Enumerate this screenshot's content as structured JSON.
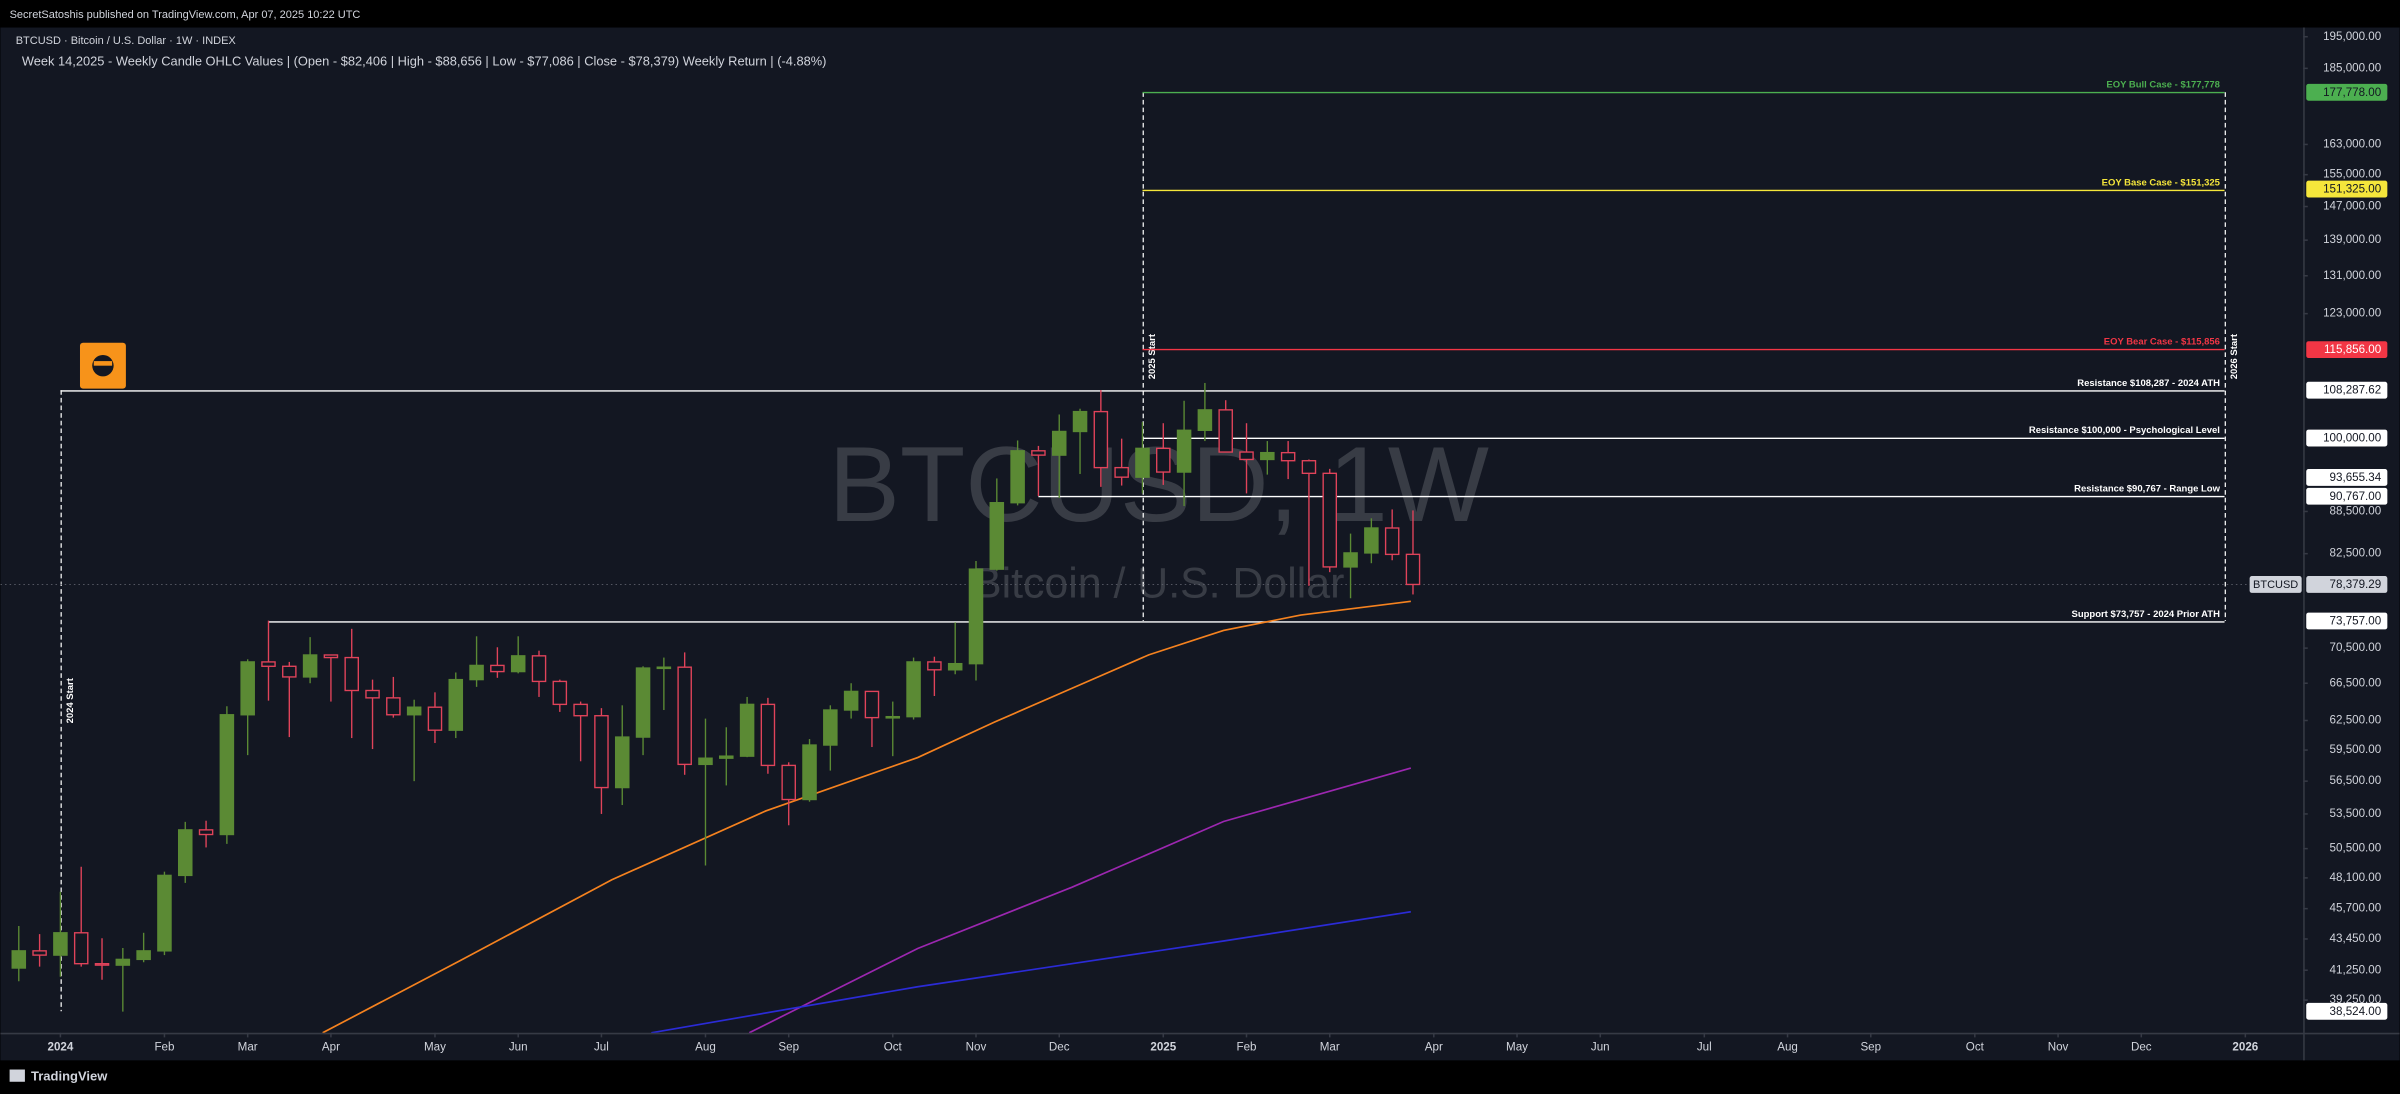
{
  "header": {
    "publisher": "SecretSatoshis published on TradingView.com, Apr 07, 2025 10:22 UTC",
    "symbol": "BTCUSD · Bitcoin / U.S. Dollar · 1W · INDEX",
    "footer": "TradingView"
  },
  "chart_data": {
    "type": "candlestick",
    "title": "Week 14,2025 - Weekly Candle OHLC Values | (Open - $82,406 | High - $88,656 | Low - $77,086 | Close - $78,379) Weekly Return | (-4.88%)",
    "watermark": "BTCUSD, 1W",
    "watermark_subtitle": "Bitcoin / U.S. Dollar",
    "categories": [
      null,
      null,
      null,
      null,
      null,
      null,
      null,
      null,
      null,
      null,
      null,
      null,
      null,
      null,
      null,
      null,
      null,
      null,
      null,
      null,
      null,
      null,
      null,
      null,
      null,
      null,
      null,
      null,
      null,
      null,
      null,
      null,
      null,
      null,
      null,
      null,
      null,
      null,
      null,
      null,
      null,
      null,
      null,
      null,
      null,
      null,
      null,
      null,
      null,
      null,
      null,
      null,
      null,
      null,
      null,
      null,
      null,
      null,
      null,
      null,
      null,
      null,
      null,
      null,
      null,
      null,
      null,
      null
    ],
    "open": [
      41400,
      42600,
      42300,
      43900,
      41700,
      41600,
      42000,
      42600,
      48300,
      52100,
      51700,
      63100,
      68900,
      68400,
      67200,
      69700,
      69400,
      65700,
      64900,
      63100,
      63900,
      61500,
      66900,
      68500,
      67800,
      69600,
      66700,
      64200,
      63000,
      55900,
      60800,
      68200,
      68300,
      58100,
      58700,
      58900,
      64200,
      58000,
      54800,
      60000,
      63600,
      65600,
      62800,
      62900,
      68900,
      68000,
      68700,
      80400,
      89800,
      97900,
      97200,
      101100,
      104500,
      95200,
      93700,
      98300,
      94500,
      101300,
      104800,
      97700,
      96500,
      97600,
      96300,
      94300,
      80700,
      82600,
      86100,
      82406
    ],
    "high": [
      44400,
      43800,
      47000,
      49000,
      43500,
      42800,
      43900,
      48600,
      52800,
      52900,
      64000,
      69200,
      73800,
      68900,
      71800,
      69700,
      72800,
      66900,
      67200,
      64700,
      65500,
      67700,
      71900,
      70600,
      71900,
      70200,
      66900,
      64500,
      63800,
      64100,
      68400,
      69400,
      70000,
      62700,
      61800,
      65000,
      64900,
      58300,
      60600,
      64100,
      66500,
      65600,
      64500,
      69400,
      69500,
      73600,
      81500,
      93500,
      99600,
      98700,
      104000,
      105000,
      108300,
      99900,
      102700,
      102500,
      106400,
      109600,
      106500,
      102500,
      99500,
      99500,
      96500,
      95000,
      85300,
      87500,
      88800,
      88656
    ],
    "low": [
      40500,
      41500,
      40800,
      41500,
      40600,
      38500,
      41800,
      42300,
      47700,
      50600,
      50900,
      59000,
      64600,
      60800,
      66500,
      64500,
      60700,
      59600,
      62800,
      56500,
      60200,
      60700,
      66100,
      67100,
      67600,
      65000,
      63400,
      58400,
      53500,
      54300,
      59000,
      63600,
      57100,
      49100,
      56100,
      58800,
      57200,
      52500,
      54600,
      57500,
      62700,
      59800,
      58900,
      62600,
      65100,
      67500,
      66800,
      80200,
      89400,
      90800,
      90500,
      94200,
      92200,
      92400,
      91200,
      92500,
      89300,
      99500,
      97800,
      91200,
      94100,
      93400,
      78200,
      80000,
      76600,
      81200,
      81600,
      77086
    ],
    "close": [
      42600,
      42300,
      43900,
      41700,
      41600,
      42000,
      42600,
      48300,
      52100,
      51700,
      63100,
      68900,
      68400,
      67200,
      69700,
      69400,
      65700,
      64900,
      63100,
      63900,
      61500,
      66900,
      68500,
      67800,
      69600,
      66700,
      64200,
      63000,
      55900,
      60800,
      68200,
      68300,
      58100,
      58700,
      58900,
      64200,
      58000,
      54800,
      60000,
      63600,
      65600,
      62800,
      62900,
      68900,
      68000,
      68700,
      80400,
      89800,
      97900,
      97200,
      101100,
      104500,
      95200,
      93700,
      98300,
      94500,
      101300,
      104800,
      97700,
      96500,
      97600,
      96300,
      94300,
      80700,
      82600,
      86100,
      82400,
      78379
    ],
    "up_color": "#5b8a34",
    "down_color": "#e0435a",
    "log_scale": true,
    "ylim": [
      37170,
      198000
    ],
    "yticks": [
      {
        "value": 195000,
        "label": "195,000.00"
      },
      {
        "value": 185000,
        "label": "185,000.00"
      },
      {
        "value": 163000,
        "label": "163,000.00"
      },
      {
        "value": 155000,
        "label": "155,000.00"
      },
      {
        "value": 147000,
        "label": "147,000.00"
      },
      {
        "value": 139000,
        "label": "139,000.00"
      },
      {
        "value": 131000,
        "label": "131,000.00"
      },
      {
        "value": 123000,
        "label": "123,000.00"
      },
      {
        "value": 88500,
        "label": "88,500.00"
      },
      {
        "value": 82500,
        "label": "82,500.00"
      },
      {
        "value": 70500,
        "label": "70,500.00"
      },
      {
        "value": 66500,
        "label": "66,500.00"
      },
      {
        "value": 62500,
        "label": "62,500.00"
      },
      {
        "value": 59500,
        "label": "59,500.00"
      },
      {
        "value": 56500,
        "label": "56,500.00"
      },
      {
        "value": 53500,
        "label": "53,500.00"
      },
      {
        "value": 50500,
        "label": "50,500.00"
      },
      {
        "value": 48100,
        "label": "48,100.00"
      },
      {
        "value": 45700,
        "label": "45,700.00"
      },
      {
        "value": 43450,
        "label": "43,450.00"
      },
      {
        "value": 41250,
        "label": "41,250.00"
      },
      {
        "value": 39250,
        "label": "39,250.00"
      }
    ],
    "xticks": [
      {
        "value": 2,
        "label": "2024"
      },
      {
        "value": 7,
        "label": "Feb"
      },
      {
        "value": 11,
        "label": "Mar"
      },
      {
        "value": 15,
        "label": "Apr"
      },
      {
        "value": 20,
        "label": "May"
      },
      {
        "value": 24,
        "label": "Jun"
      },
      {
        "value": 28,
        "label": "Jul"
      },
      {
        "value": 33,
        "label": "Aug"
      },
      {
        "value": 37,
        "label": "Sep"
      },
      {
        "value": 42,
        "label": "Oct"
      },
      {
        "value": 46,
        "label": "Nov"
      },
      {
        "value": 50,
        "label": "Dec"
      },
      {
        "value": 55,
        "label": "2025"
      },
      {
        "value": 59,
        "label": "Feb"
      },
      {
        "value": 63,
        "label": "Mar"
      },
      {
        "value": 68,
        "label": "Apr"
      },
      {
        "value": 72,
        "label": "May"
      },
      {
        "value": 76,
        "label": "Jun"
      },
      {
        "value": 81,
        "label": "Jul"
      },
      {
        "value": 85,
        "label": "Aug"
      },
      {
        "value": 89,
        "label": "Sep"
      },
      {
        "value": 94,
        "label": "Oct"
      },
      {
        "value": 98,
        "label": "Nov"
      },
      {
        "value": 102,
        "label": "Dec"
      },
      {
        "value": 107,
        "label": "2026"
      }
    ],
    "lines": [
      {
        "color": "#f5821f",
        "x": [
          14.6,
          21.2,
          28.5,
          35.9,
          43.2,
          46.9,
          50.6,
          54.3,
          57.9,
          61.6,
          66.9
        ],
        "values": [
          37170,
          41910,
          47950,
          53770,
          58770,
          62340,
          65930,
          69710,
          72620,
          74490,
          76210
        ]
      },
      {
        "color": "#9c27b0",
        "x": [
          35.1,
          43.2,
          50.6,
          57.9,
          66.9
        ],
        "values": [
          37170,
          42770,
          47350,
          52830,
          57740
        ]
      },
      {
        "color": "#2b2bd6",
        "x": [
          30.4,
          43.2,
          57.9,
          66.9
        ],
        "values": [
          37170,
          40130,
          43310,
          45460
        ]
      }
    ],
    "levels": [
      {
        "label": "EOY Bull Case - $177,778",
        "value": 177778,
        "price_label": "177,778.00",
        "color": "#4caf50",
        "from": 54,
        "to": 106
      },
      {
        "label": "EOY Base Case - $151,325",
        "value": 151325,
        "price_label": "151,325.00",
        "color": "#f5e63b",
        "from": 54,
        "to": 106
      },
      {
        "label": "EOY Bear Case - $115,856",
        "value": 115856,
        "price_label": "115,856.00",
        "color": "#f23645",
        "from": 54,
        "to": 106
      },
      {
        "label": "Resistance $108,287 - 2024 ATH",
        "value": 108287.62,
        "price_label": "108,287.62",
        "color": "#ffffff",
        "from": 2,
        "to": 106
      },
      {
        "label": "Resistance $100,000 - Psychological Level",
        "value": 100000,
        "price_label": "100,000.00",
        "color": "#ffffff",
        "from": 54,
        "to": 106
      },
      {
        "label": "Resistance $90,767 - Range Low",
        "value": 90767,
        "price_label": "90,767.00",
        "color": "#ffffff",
        "from": 49,
        "to": 106
      },
      {
        "label": "Support $73,757 - 2024 Prior ATH",
        "value": 73757,
        "price_label": "73,757.00",
        "color": "#ffffff",
        "from": 12,
        "to": 106
      }
    ],
    "markers": [
      {
        "label": "2024 Start",
        "x": 2,
        "range": [
          38524,
          108287.62
        ]
      },
      {
        "label": "2025 Start",
        "x": 54,
        "range": [
          73757,
          177778
        ]
      },
      {
        "label": "2026 Start",
        "x": 106,
        "range": [
          73757,
          177778
        ]
      }
    ],
    "price_boxes": [
      {
        "value": 93655.34,
        "label": "93,655.34"
      },
      {
        "value": 38524,
        "label": "38,524.00"
      }
    ],
    "last_price": {
      "name": "BTCUSD",
      "value": 78379.29,
      "label": "78,379.29"
    }
  }
}
